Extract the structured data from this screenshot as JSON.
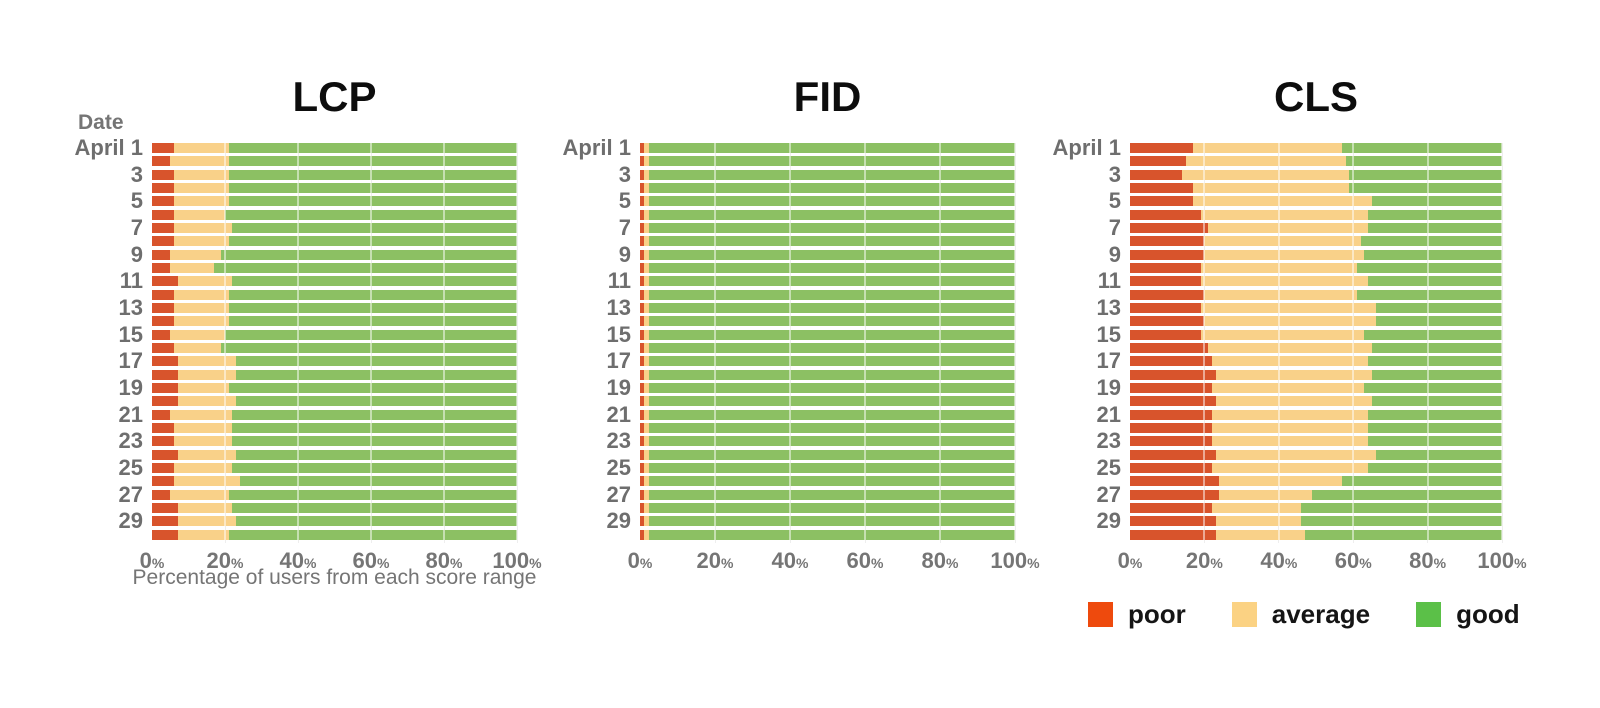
{
  "colors": {
    "bar_poor": "#d8542c",
    "bar_average": "#f9d189",
    "bar_good": "#8cc063",
    "legend_poor": "#ee4a0d",
    "legend_average": "#fbd283",
    "legend_good": "#5bc048",
    "label_gray": "#757575",
    "title_black": "#0d0d0d",
    "gridline": "#dcdcdc"
  },
  "axis": {
    "y_title": "Date",
    "y_tick_labels": [
      "April 1",
      "3",
      "5",
      "7",
      "9",
      "11",
      "13",
      "15",
      "17",
      "19",
      "21",
      "23",
      "25",
      "27",
      "29"
    ],
    "x_ticks": [
      "0",
      "20",
      "40",
      "60",
      "80",
      "100"
    ],
    "tick_suffix": "%",
    "x_caption": "Percentage of users from each score range"
  },
  "legend": {
    "items": [
      {
        "label": "poor",
        "color_key": "legend_poor"
      },
      {
        "label": "average",
        "color_key": "legend_average"
      },
      {
        "label": "good",
        "color_key": "legend_good"
      }
    ]
  },
  "chart_data": [
    {
      "type": "bar",
      "orientation": "horizontal",
      "stacked": true,
      "title": "LCP",
      "xlabel": "Percentage of users from each score range",
      "ylabel": "Date",
      "xlim": [
        0,
        100
      ],
      "grid": true,
      "categories": [
        "April 1",
        "April 2",
        "April 3",
        "April 4",
        "April 5",
        "April 6",
        "April 7",
        "April 8",
        "April 9",
        "April 10",
        "April 11",
        "April 12",
        "April 13",
        "April 14",
        "April 15",
        "April 16",
        "April 17",
        "April 18",
        "April 19",
        "April 20",
        "April 21",
        "April 22",
        "April 23",
        "April 24",
        "April 25",
        "April 26",
        "April 27",
        "April 28",
        "April 29",
        "April 30"
      ],
      "series": [
        {
          "name": "poor",
          "values": [
            6,
            5,
            6,
            6,
            6,
            6,
            6,
            6,
            5,
            5,
            7,
            6,
            6,
            6,
            5,
            6,
            7,
            7,
            7,
            7,
            5,
            6,
            6,
            7,
            6,
            6,
            5,
            7,
            7,
            7
          ]
        },
        {
          "name": "average",
          "values": [
            15,
            16,
            15,
            15,
            15,
            14,
            16,
            15,
            14,
            12,
            15,
            15,
            15,
            15,
            15,
            13,
            16,
            16,
            14,
            16,
            17,
            16,
            16,
            16,
            16,
            18,
            16,
            15,
            16,
            14
          ]
        },
        {
          "name": "good",
          "values": [
            79,
            79,
            79,
            79,
            79,
            80,
            78,
            79,
            81,
            83,
            78,
            79,
            79,
            79,
            80,
            81,
            77,
            77,
            79,
            77,
            78,
            78,
            78,
            77,
            78,
            76,
            79,
            78,
            77,
            79
          ]
        }
      ]
    },
    {
      "type": "bar",
      "orientation": "horizontal",
      "stacked": true,
      "title": "FID",
      "ylabel": "Date",
      "xlim": [
        0,
        100
      ],
      "grid": true,
      "categories": [
        "April 1",
        "April 2",
        "April 3",
        "April 4",
        "April 5",
        "April 6",
        "April 7",
        "April 8",
        "April 9",
        "April 10",
        "April 11",
        "April 12",
        "April 13",
        "April 14",
        "April 15",
        "April 16",
        "April 17",
        "April 18",
        "April 19",
        "April 20",
        "April 21",
        "April 22",
        "April 23",
        "April 24",
        "April 25",
        "April 26",
        "April 27",
        "April 28",
        "April 29",
        "April 30"
      ],
      "series": [
        {
          "name": "poor",
          "values": [
            1,
            1,
            1,
            1,
            1,
            1,
            1,
            1,
            1,
            1,
            1,
            1,
            1,
            1,
            1,
            1,
            1,
            1,
            1,
            1,
            1,
            1,
            1,
            1,
            1,
            1,
            1,
            1,
            1,
            1
          ]
        },
        {
          "name": "average",
          "values": [
            1.5,
            1.5,
            1.5,
            1.5,
            1.5,
            1.5,
            1.5,
            1.5,
            1.5,
            1.5,
            1.5,
            1.5,
            1.5,
            1.5,
            1.5,
            1.5,
            1.5,
            1.5,
            1.5,
            1.5,
            1.5,
            1.5,
            1.5,
            1.5,
            1.5,
            1.5,
            1.5,
            1.5,
            1.5,
            1.5
          ]
        },
        {
          "name": "good",
          "values": [
            97.5,
            97.5,
            97.5,
            97.5,
            97.5,
            97.5,
            97.5,
            97.5,
            97.5,
            97.5,
            97.5,
            97.5,
            97.5,
            97.5,
            97.5,
            97.5,
            97.5,
            97.5,
            97.5,
            97.5,
            97.5,
            97.5,
            97.5,
            97.5,
            97.5,
            97.5,
            97.5,
            97.5,
            97.5,
            97.5
          ]
        }
      ]
    },
    {
      "type": "bar",
      "orientation": "horizontal",
      "stacked": true,
      "title": "CLS",
      "ylabel": "Date",
      "xlim": [
        0,
        100
      ],
      "grid": true,
      "legend_position": "bottom",
      "categories": [
        "April 1",
        "April 2",
        "April 3",
        "April 4",
        "April 5",
        "April 6",
        "April 7",
        "April 8",
        "April 9",
        "April 10",
        "April 11",
        "April 12",
        "April 13",
        "April 14",
        "April 15",
        "April 16",
        "April 17",
        "April 18",
        "April 19",
        "April 20",
        "April 21",
        "April 22",
        "April 23",
        "April 24",
        "April 25",
        "April 26",
        "April 27",
        "April 28",
        "April 29",
        "April 30"
      ],
      "series": [
        {
          "name": "poor",
          "values": [
            17,
            15,
            14,
            17,
            17,
            19,
            21,
            20,
            20,
            19,
            19,
            20,
            19,
            20,
            19,
            21,
            22,
            23,
            22,
            23,
            22,
            22,
            22,
            23,
            22,
            24,
            24,
            22,
            23,
            23
          ]
        },
        {
          "name": "average",
          "values": [
            40,
            43,
            45,
            42,
            48,
            45,
            43,
            42,
            43,
            42,
            45,
            41,
            47,
            46,
            44,
            44,
            42,
            42,
            41,
            42,
            42,
            42,
            42,
            43,
            42,
            33,
            25,
            24,
            23,
            24
          ]
        },
        {
          "name": "good",
          "values": [
            43,
            42,
            41,
            41,
            35,
            36,
            36,
            38,
            37,
            39,
            36,
            39,
            34,
            34,
            37,
            35,
            36,
            35,
            37,
            35,
            36,
            36,
            36,
            34,
            36,
            43,
            51,
            54,
            54,
            53
          ]
        }
      ]
    }
  ]
}
